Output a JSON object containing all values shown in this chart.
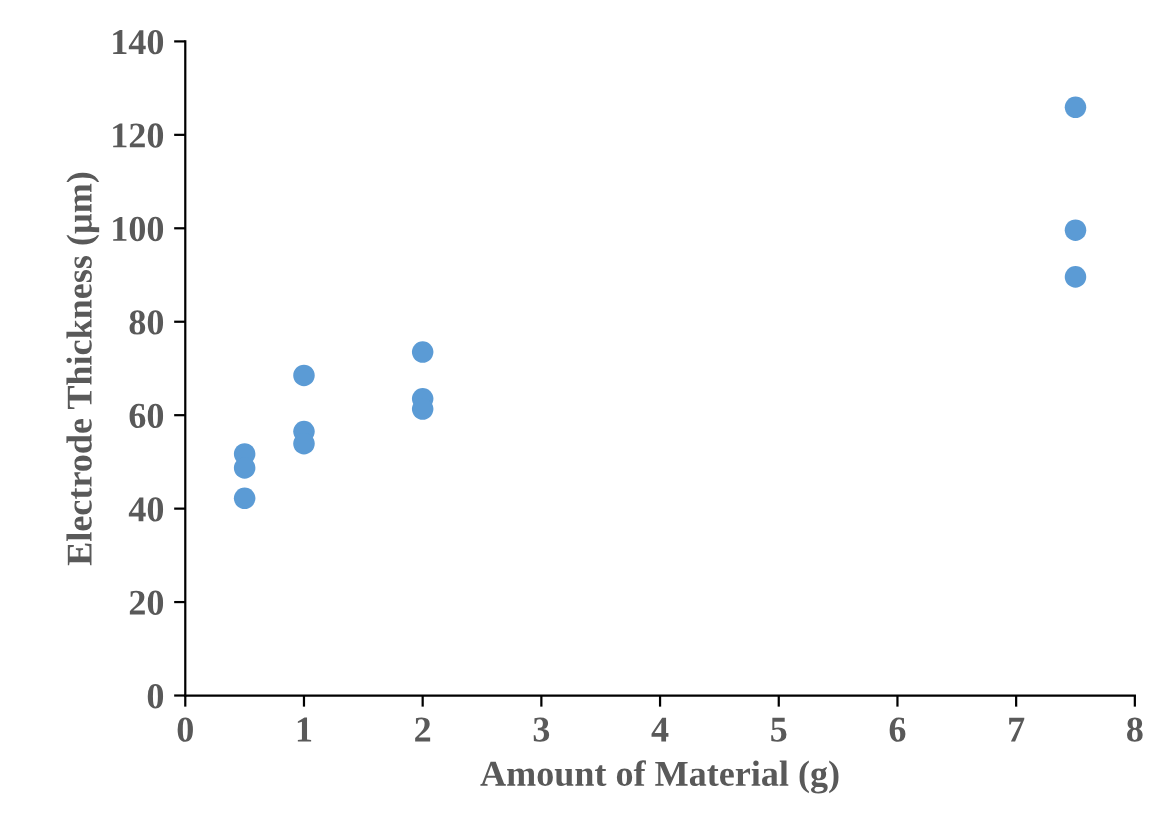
{
  "chart_data": {
    "type": "scatter",
    "xlabel": "Amount of Material (g)",
    "ylabel": "Electrode Thickness (µm)",
    "x": [
      0.5,
      0.5,
      0.5,
      1,
      1,
      1,
      2,
      2,
      2,
      7.5,
      7.5,
      7.5
    ],
    "series": [
      {
        "color": "#5b9bd5",
        "values": [
          51.7,
          48.7,
          42.2,
          68.5,
          56.5,
          53.9,
          73.5,
          63.5,
          61.3,
          89.6,
          99.6,
          125.9
        ]
      }
    ],
    "xlim": [
      0,
      8
    ],
    "xticks": [
      0,
      1,
      2,
      3,
      4,
      5,
      6,
      7,
      8
    ],
    "ylim": [
      0,
      140
    ],
    "yticks": [
      0,
      20,
      40,
      60,
      80,
      100,
      120,
      140
    ],
    "grid": false,
    "marker": "circle"
  }
}
